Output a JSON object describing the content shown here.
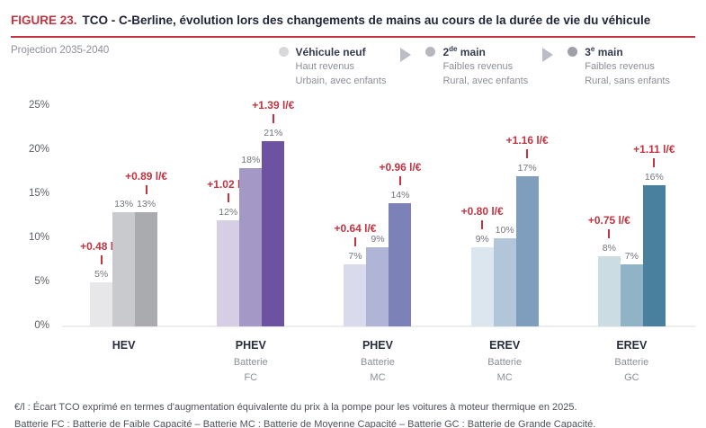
{
  "figure": {
    "label": "FIGURE 23.",
    "title": "TCO - C-Berline, évolution lors des changements de mains au cours de la durée de vie du véhicule",
    "subtitle": "Projection 2035-2040"
  },
  "legend": {
    "items": [
      {
        "name_prefix": "Véhicule neuf",
        "name_sup": "",
        "name_suffix": "",
        "line1": "Haut revenus",
        "line2": "Urbain, avec enfants",
        "dot_color": "#d7d8db"
      },
      {
        "name_prefix": "2",
        "name_sup": "de",
        "name_suffix": " main",
        "line1": "Faibles revenus",
        "line2": "Rural, avec enfants",
        "dot_color": "#b6b8bd"
      },
      {
        "name_prefix": "3",
        "name_sup": "e",
        "name_suffix": " main",
        "line1": "Faibles revenus",
        "line2": "Rural, sans enfants",
        "dot_color": "#9da0a6"
      }
    ]
  },
  "chart_data": {
    "type": "bar",
    "title": "TCO - C-Berline, évolution lors des changements de mains au cours de la durée de vie du véhicule",
    "subtitle": "Projection 2035-2040",
    "unit": "%",
    "ylim": [
      0,
      25
    ],
    "yticks": [
      "0%",
      "5%",
      "10%",
      "15%",
      "20%",
      "25%"
    ],
    "grid": "baseline-only",
    "legend_entries": [
      "Véhicule neuf (Haut revenus, Urbain, avec enfants)",
      "2de main (Faibles revenus, Rural, avec enfants)",
      "3e main (Faibles revenus, Rural, sans enfants)"
    ],
    "accent_color": "#c43440",
    "groups": [
      {
        "category": "HEV",
        "sub1": "",
        "sub2": "",
        "values": [
          5,
          13,
          13
        ],
        "value_labels": [
          "5%",
          "13%",
          "13%"
        ],
        "colors": [
          "#e7e7e9",
          "#c9cacd",
          "#a9abaf"
        ],
        "annotations": [
          {
            "text": "+0.48 l/€",
            "bar_index": 0
          },
          {
            "text": "+0.89 l/€",
            "bar_index": 2
          }
        ]
      },
      {
        "category": "PHEV",
        "sub1": "Batterie",
        "sub2": "FC",
        "values": [
          12,
          18,
          21
        ],
        "value_labels": [
          "12%",
          "18%",
          "21%"
        ],
        "colors": [
          "#d5cee5",
          "#a498c7",
          "#6c52a0"
        ],
        "annotations": [
          {
            "text": "+1.02 l/€",
            "bar_index": 0
          },
          {
            "text": "+1.39 l/€",
            "bar_index": 2
          }
        ]
      },
      {
        "category": "PHEV",
        "sub1": "Batterie",
        "sub2": "MC",
        "values": [
          7,
          9,
          14
        ],
        "value_labels": [
          "7%",
          "9%",
          "14%"
        ],
        "colors": [
          "#d9daeb",
          "#b0b5d8",
          "#7c81b7"
        ],
        "annotations": [
          {
            "text": "+0.64 l/€",
            "bar_index": 0
          },
          {
            "text": "+0.96 l/€",
            "bar_index": 2
          }
        ]
      },
      {
        "category": "EREV",
        "sub1": "Batterie",
        "sub2": "MC",
        "values": [
          9,
          10,
          17
        ],
        "value_labels": [
          "9%",
          "10%",
          "17%"
        ],
        "colors": [
          "#dce6ef",
          "#b3c6d9",
          "#7f9ebd"
        ],
        "annotations": [
          {
            "text": "+0.80 l/€",
            "bar_index": 0
          },
          {
            "text": "+1.16 l/€",
            "bar_index": 2
          }
        ]
      },
      {
        "category": "EREV",
        "sub1": "Batterie",
        "sub2": "GC",
        "values": [
          8,
          7,
          16
        ],
        "value_labels": [
          "8%",
          "7%",
          "16%"
        ],
        "colors": [
          "#cbdce3",
          "#90b3c5",
          "#48809e"
        ],
        "annotations": [
          {
            "text": "+0.75 l/€",
            "bar_index": 0
          },
          {
            "text": "+1.11 l/€",
            "bar_index": 2
          }
        ]
      }
    ]
  },
  "footnotes": [
    "€/l : Écart TCO exprimé en termes d'augmentation équivalente du prix à la pompe pour les voitures à moteur thermique en 2025.",
    "Batterie FC : Batterie de Faible Capacité – Batterie MC : Batterie de Moyenne Capacité – Batterie GC : Batterie de Grande Capacité."
  ]
}
